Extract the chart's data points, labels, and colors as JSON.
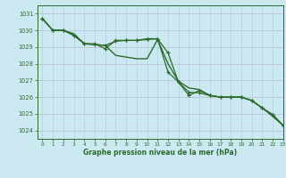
{
  "title": "Graphe pression niveau de la mer (hPa)",
  "bg_color": "#cce8f0",
  "grid_color": "#aaccdd",
  "line_color": "#2d6a2d",
  "xlim": [
    -0.5,
    23
  ],
  "ylim": [
    1023.5,
    1031.5
  ],
  "yticks": [
    1024,
    1025,
    1026,
    1027,
    1028,
    1029,
    1030,
    1031
  ],
  "xticks": [
    0,
    1,
    2,
    3,
    4,
    5,
    6,
    7,
    8,
    9,
    10,
    11,
    12,
    13,
    14,
    15,
    16,
    17,
    18,
    19,
    20,
    21,
    22,
    23
  ],
  "series": [
    {
      "y": [
        1030.7,
        1030.0,
        1030.0,
        1029.8,
        1029.2,
        1029.15,
        1029.1,
        1028.5,
        1028.4,
        1028.3,
        1028.3,
        1029.45,
        1028.0,
        1026.95,
        1026.55,
        1026.45,
        1026.1,
        1026.0,
        1026.0,
        1026.0,
        1025.8,
        1025.35,
        1024.85,
        1024.3
      ],
      "marker": null,
      "lw": 1.0
    },
    {
      "y": [
        1030.7,
        1030.0,
        1030.0,
        1029.7,
        1029.2,
        1029.2,
        1028.9,
        1029.4,
        1029.4,
        1029.4,
        1029.5,
        1029.5,
        1027.5,
        1026.9,
        1026.1,
        1026.4,
        1026.1,
        1026.0,
        1026.0,
        1026.0,
        1025.8,
        1025.35,
        1024.95,
        1024.3
      ],
      "marker": "+",
      "lw": 0.9
    },
    {
      "y": [
        1030.7,
        1030.0,
        1030.0,
        1029.7,
        1029.2,
        1029.15,
        1029.1,
        1029.35,
        1029.4,
        1029.4,
        1029.45,
        1029.5,
        1028.65,
        1026.9,
        1026.3,
        1026.25,
        1026.1,
        1026.0,
        1026.0,
        1026.0,
        1025.8,
        1025.35,
        1024.95,
        1024.3
      ],
      "marker": "+",
      "lw": 0.9
    }
  ]
}
